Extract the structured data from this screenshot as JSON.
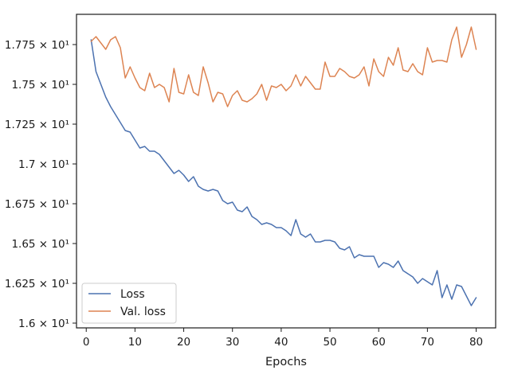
{
  "chart_data": {
    "type": "line",
    "title": "",
    "xlabel": "Epochs",
    "ylabel": "",
    "xlim": [
      -2,
      84
    ],
    "ylim": [
      15.97,
      17.94
    ],
    "x_ticks": [
      0,
      10,
      20,
      30,
      40,
      50,
      60,
      70,
      80
    ],
    "y_ticks": [
      {
        "value": 16.0,
        "label": "1.6 × 10¹"
      },
      {
        "value": 16.25,
        "label": "1.625 × 10¹"
      },
      {
        "value": 16.5,
        "label": "1.65 × 10¹"
      },
      {
        "value": 16.75,
        "label": "1.675 × 10¹"
      },
      {
        "value": 17.0,
        "label": "1.7 × 10¹"
      },
      {
        "value": 17.25,
        "label": "1.725 × 10¹"
      },
      {
        "value": 17.5,
        "label": "1.75 × 10¹"
      },
      {
        "value": 17.75,
        "label": "1.775 × 10¹"
      }
    ],
    "grid": false,
    "legend": "lower-left",
    "x": [
      1,
      2,
      3,
      4,
      5,
      6,
      7,
      8,
      9,
      10,
      11,
      12,
      13,
      14,
      15,
      16,
      17,
      18,
      19,
      20,
      21,
      22,
      23,
      24,
      25,
      26,
      27,
      28,
      29,
      30,
      31,
      32,
      33,
      34,
      35,
      36,
      37,
      38,
      39,
      40,
      41,
      42,
      43,
      44,
      45,
      46,
      47,
      48,
      49,
      50,
      51,
      52,
      53,
      54,
      55,
      56,
      57,
      58,
      59,
      60,
      61,
      62,
      63,
      64,
      65,
      66,
      67,
      68,
      69,
      70,
      71,
      72,
      73,
      74,
      75,
      76,
      77,
      78,
      79,
      80
    ],
    "series": [
      {
        "name": "Loss",
        "color": "#4c72b0",
        "values": [
          17.78,
          17.58,
          17.5,
          17.42,
          17.36,
          17.31,
          17.26,
          17.21,
          17.2,
          17.15,
          17.1,
          17.11,
          17.08,
          17.08,
          17.06,
          17.02,
          16.98,
          16.94,
          16.96,
          16.93,
          16.89,
          16.92,
          16.86,
          16.84,
          16.83,
          16.84,
          16.83,
          16.77,
          16.75,
          16.76,
          16.71,
          16.7,
          16.73,
          16.67,
          16.65,
          16.62,
          16.63,
          16.62,
          16.6,
          16.6,
          16.58,
          16.55,
          16.65,
          16.56,
          16.54,
          16.56,
          16.51,
          16.51,
          16.52,
          16.52,
          16.51,
          16.47,
          16.46,
          16.48,
          16.41,
          16.43,
          16.42,
          16.42,
          16.42,
          16.35,
          16.38,
          16.37,
          16.35,
          16.39,
          16.33,
          16.31,
          16.29,
          16.25,
          16.28,
          16.26,
          16.24,
          16.33,
          16.16,
          16.24,
          16.15,
          16.24,
          16.23,
          16.17,
          16.11,
          16.16
        ]
      },
      {
        "name": "Val. loss",
        "color": "#dd8452",
        "values": [
          17.77,
          17.8,
          17.76,
          17.72,
          17.78,
          17.8,
          17.73,
          17.54,
          17.61,
          17.54,
          17.48,
          17.46,
          17.57,
          17.48,
          17.5,
          17.48,
          17.39,
          17.6,
          17.45,
          17.44,
          17.56,
          17.45,
          17.43,
          17.61,
          17.51,
          17.39,
          17.45,
          17.44,
          17.36,
          17.43,
          17.46,
          17.4,
          17.39,
          17.41,
          17.44,
          17.5,
          17.4,
          17.49,
          17.48,
          17.5,
          17.46,
          17.49,
          17.56,
          17.49,
          17.55,
          17.51,
          17.47,
          17.47,
          17.64,
          17.55,
          17.55,
          17.6,
          17.58,
          17.55,
          17.54,
          17.56,
          17.61,
          17.49,
          17.66,
          17.58,
          17.55,
          17.67,
          17.62,
          17.73,
          17.59,
          17.58,
          17.63,
          17.58,
          17.56,
          17.73,
          17.64,
          17.65,
          17.65,
          17.64,
          17.78,
          17.86,
          17.67,
          17.75,
          17.86,
          17.72
        ]
      }
    ]
  }
}
